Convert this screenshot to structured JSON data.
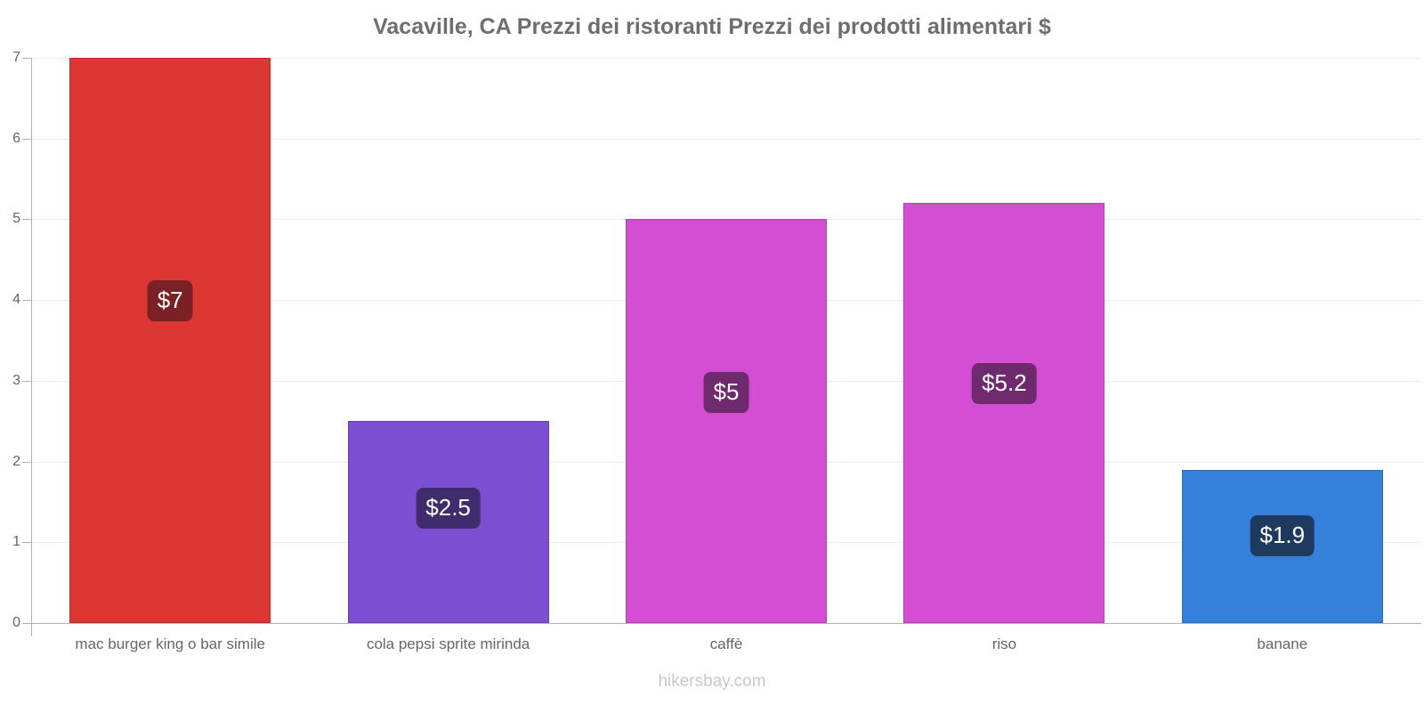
{
  "title": "Vacaville, CA Prezzi dei ristoranti Prezzi dei prodotti alimentari $",
  "footer": {
    "text": "hikersbay.com"
  },
  "chart_data": {
    "type": "bar",
    "title": "Vacaville, CA Prezzi dei ristoranti Prezzi dei prodotti alimentari $",
    "categories": [
      "mac burger king o bar simile",
      "cola pepsi sprite mirinda",
      "caffè",
      "riso",
      "banane"
    ],
    "values": [
      7,
      2.5,
      5,
      5.2,
      1.9
    ],
    "value_labels": [
      "$7",
      "$2.5",
      "$5",
      "$5.2",
      "$1.9"
    ],
    "bar_colors": [
      "#dc3733",
      "#7c4ed2",
      "#d34ed3",
      "#d34ed3",
      "#3580db"
    ],
    "label_box_colors": [
      "#7a2125",
      "#3f2c6d",
      "#6e2a6c",
      "#6e2a6c",
      "#1e3a5f"
    ],
    "xlabel": "",
    "ylabel": "",
    "ylim": [
      0,
      7
    ],
    "y_ticks": [
      0,
      1,
      2,
      3,
      4,
      5,
      6,
      7
    ],
    "grid": true,
    "legend_position": "none",
    "currency": "$"
  },
  "colors": {
    "title_text": "#6e6e6e",
    "axis_text": "#666666",
    "axis_line": "#b1b1b1",
    "grid_line": "#f3e8f2",
    "value_text": "#ffffff",
    "watermark_text": "#c9c5d2",
    "background": "#ffffff"
  }
}
